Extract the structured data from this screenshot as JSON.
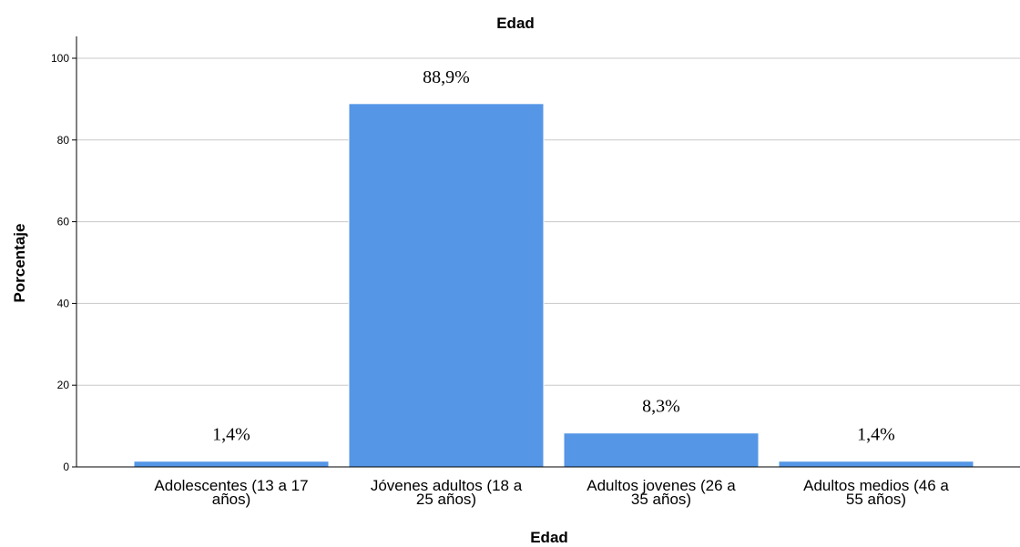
{
  "chart_data": {
    "type": "bar",
    "title": "Edad",
    "xlabel": "Edad",
    "ylabel": "Porcentaje",
    "ylim": [
      0,
      100
    ],
    "yticks": [
      0,
      20,
      40,
      60,
      80,
      100
    ],
    "grid": true,
    "bar_color": "#5596e6",
    "categories": [
      [
        "Adolescentes (13 a 17",
        "años)"
      ],
      [
        "Jóvenes adultos (18 a",
        "25 años)"
      ],
      [
        "Adultos jovenes (26 a",
        "35 años)"
      ],
      [
        "Adultos medios (46 a",
        "55 años)"
      ]
    ],
    "values": [
      1.4,
      88.9,
      8.3,
      1.4
    ],
    "data_labels": [
      "1,4%",
      "88,9%",
      "8,3%",
      "1,4%"
    ]
  }
}
